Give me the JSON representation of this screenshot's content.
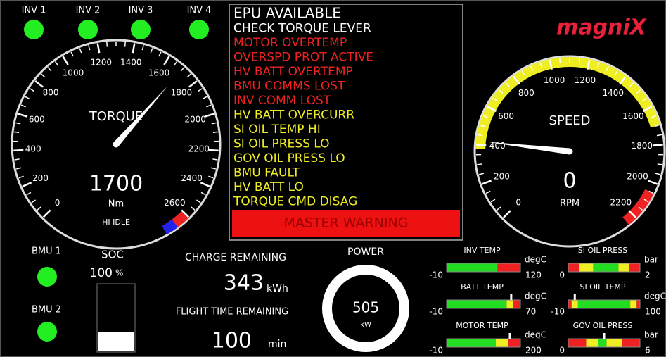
{
  "inverters": [
    "INV 1",
    "INV 2",
    "INV 3",
    "INV 4"
  ],
  "logo": "magniX",
  "messages": [
    {
      "text": "EPU AVAILABLE",
      "color": "#ffffff"
    },
    {
      "text": "CHECK TORQUE LEVER",
      "color": "#ffffff"
    },
    {
      "text": "MOTOR OVERTEMP",
      "color": "#ee2222"
    },
    {
      "text": "OVERSPD PROT ACTIVE",
      "color": "#ee2222"
    },
    {
      "text": "HV BATT OVERTEMP",
      "color": "#ee2222"
    },
    {
      "text": "BMU COMMS LOST",
      "color": "#ee2222"
    },
    {
      "text": "INV COMM LOST",
      "color": "#ee2222"
    },
    {
      "text": "HV BATT OVERCURR",
      "color": "#eeee22"
    },
    {
      "text": "SI OIL TEMP HI",
      "color": "#eeee22"
    },
    {
      "text": "SI OIL PRESS LO",
      "color": "#eeee22"
    },
    {
      "text": "GOV OIL PRESS LO",
      "color": "#eeee22"
    },
    {
      "text": "BMU FAULT",
      "color": "#eeee22"
    },
    {
      "text": "HV BATT LO",
      "color": "#eeee22"
    },
    {
      "text": "TORQUE CMD DISAG",
      "color": "#eeee22"
    }
  ],
  "master_warning": "MASTER WARNING",
  "torque_gauge": {
    "label": "TORQUE",
    "value": 1700,
    "unit": "Nm",
    "mode": "HI IDLE",
    "ticks": [
      0,
      200,
      400,
      600,
      800,
      1000,
      1200,
      1400,
      1600,
      1800,
      2000,
      2200,
      2400,
      2600
    ],
    "bands": [
      {
        "from": 2600,
        "to": 2750,
        "color": "#ee2222"
      },
      {
        "from": 2680,
        "to": 2750,
        "color": "#2222ee"
      }
    ]
  },
  "speed_gauge": {
    "label": "SPEED",
    "value": 0,
    "unit": "RPM",
    "needle": 420,
    "ticks": [
      0,
      200,
      400,
      600,
      800,
      1000,
      1200,
      1400,
      1600,
      1800,
      2000,
      2200
    ],
    "bands": [
      {
        "from": 380,
        "to": 1700,
        "color": "#eeee22"
      },
      {
        "from": 2050,
        "to": 2250,
        "color": "#ee2222"
      }
    ]
  },
  "bmus": [
    "BMU 1",
    "BMU 2"
  ],
  "soc": {
    "label": "SOC",
    "value": 100,
    "unit": "%"
  },
  "charge": {
    "label": "CHARGE REMAINING",
    "value": 343,
    "unit": "kWh"
  },
  "flight_time": {
    "label": "FLIGHT TIME REMAINING",
    "value": 100,
    "unit": "min"
  },
  "power": {
    "label": "POWER",
    "value": 505,
    "unit": "kW"
  },
  "bar_gauges": [
    {
      "title": "INV TEMP",
      "unit": "degC",
      "min": -10,
      "max": 120,
      "zones": [
        [
          -10,
          80,
          "#22dd22"
        ],
        [
          80,
          120,
          "#ee2222"
        ]
      ]
    },
    {
      "title": "BATT TEMP",
      "unit": "degC",
      "min": -10,
      "max": 70,
      "pointer": 60,
      "zones": [
        [
          -10,
          55,
          "#22dd22"
        ],
        [
          55,
          62,
          "#eeee22"
        ],
        [
          62,
          70,
          "#ee2222"
        ]
      ]
    },
    {
      "title": "MOTOR TEMP",
      "unit": "degC",
      "min": -10,
      "max": 200,
      "pointer": 170,
      "zones": [
        [
          -10,
          130,
          "#22dd22"
        ],
        [
          130,
          165,
          "#eeee22"
        ],
        [
          165,
          200,
          "#ee2222"
        ]
      ]
    },
    {
      "title": "SI OIL PRESS",
      "unit": "bar",
      "min": 0,
      "max": 2,
      "zones": [
        [
          0,
          0.3,
          "#ee2222"
        ],
        [
          0.3,
          0.7,
          "#eeee22"
        ],
        [
          0.7,
          1.4,
          "#22dd22"
        ],
        [
          1.4,
          1.7,
          "#eeee22"
        ],
        [
          1.7,
          2,
          "#ee2222"
        ]
      ]
    },
    {
      "title": "SI OIL TEMP",
      "unit": "degC",
      "min": -10,
      "max": 100,
      "pointer": 0,
      "zones": [
        [
          -10,
          -5,
          "#ee2222"
        ],
        [
          -5,
          5,
          "#eeee22"
        ],
        [
          5,
          85,
          "#22dd22"
        ],
        [
          85,
          95,
          "#eeee22"
        ],
        [
          95,
          100,
          "#ee2222"
        ]
      ]
    },
    {
      "title": "GOV OIL PRESS",
      "unit": "bar",
      "min": 0,
      "max": 6,
      "pointer": 3,
      "zones": [
        [
          0,
          1.5,
          "#ee2222"
        ],
        [
          1.5,
          2.5,
          "#eeee22"
        ],
        [
          2.5,
          3.2,
          "#22dd22"
        ],
        [
          3.2,
          4.5,
          "#eeee22"
        ],
        [
          4.5,
          6,
          "#ee2222"
        ]
      ]
    }
  ]
}
